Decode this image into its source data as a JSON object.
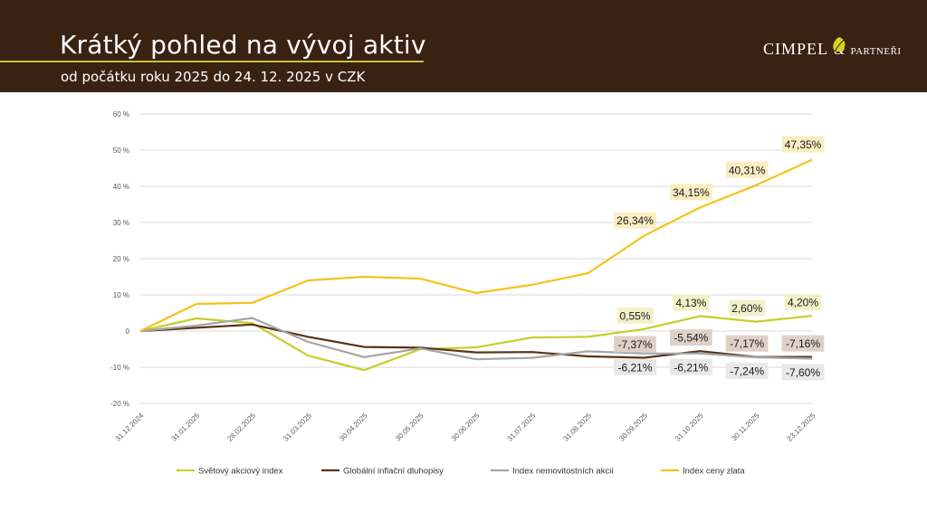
{
  "header": {
    "title": "Krátký pohled na vývoj aktiv",
    "subtitle": "od počátku roku 2025 do 24. 12. 2025 v CZK",
    "logo_main": "CIMPEL",
    "logo_amp": "&",
    "logo_partner": "PARTNEŘI"
  },
  "colors": {
    "header_bg": "#3a2212",
    "series": [
      "#c5cf2a",
      "#5a3214",
      "#a5a5a5",
      "#f7c11c"
    ],
    "label_bg": [
      "#f3f1c8",
      "#ded2c8",
      "#e8e8e8",
      "#fbedc2"
    ]
  },
  "chart_data": {
    "type": "line",
    "title": "",
    "xlabel": "",
    "ylabel": "",
    "ylim": [
      -20,
      60
    ],
    "yticks": [
      -20,
      -10,
      0,
      10,
      20,
      30,
      40,
      50,
      60
    ],
    "ytick_labels": [
      "-20 %",
      "-10 %",
      "0",
      "10 %",
      "20 %",
      "30 %",
      "40 %",
      "50 %",
      "60 %"
    ],
    "categories": [
      "31.12.2024",
      "31.01.2025",
      "28.02.2025",
      "31.03.2025",
      "30.04.2025",
      "30.05.2025",
      "30.06.2025",
      "31.07.2025",
      "31.08.2025",
      "30.09.2025",
      "31.10.2025",
      "30.11.2025",
      "23.12.2025"
    ],
    "legend_position": "bottom",
    "grid": true,
    "series": [
      {
        "name": "Světový akciový index",
        "values": [
          0,
          3.5,
          2.2,
          -6.8,
          -10.8,
          -5.0,
          -4.5,
          -1.8,
          -1.6,
          0.55,
          4.13,
          2.6,
          4.2
        ],
        "labels": [
          null,
          null,
          null,
          null,
          null,
          null,
          null,
          null,
          null,
          "0,55%",
          "4,13%",
          "2,60%",
          "4,20%"
        ]
      },
      {
        "name": "Globální inflační dluhopisy",
        "values": [
          0,
          0.9,
          1.8,
          -1.6,
          -4.4,
          -4.6,
          -5.9,
          -5.8,
          -7.0,
          -7.37,
          -5.54,
          -7.17,
          -7.16
        ],
        "labels": [
          null,
          null,
          null,
          null,
          null,
          null,
          null,
          null,
          null,
          "-7,37%",
          "-5,54%",
          "-7,17%",
          "-7,16%"
        ]
      },
      {
        "name": "Index nemovitostních akcií",
        "values": [
          0,
          1.5,
          3.6,
          -3.0,
          -7.2,
          -4.8,
          -7.8,
          -7.4,
          -5.6,
          -6.21,
          -6.21,
          -7.24,
          -7.6
        ],
        "labels": [
          null,
          null,
          null,
          null,
          null,
          null,
          null,
          null,
          null,
          "-6,21%",
          "-6,21%",
          "-7,24%",
          "-7,60%"
        ]
      },
      {
        "name": "Index ceny zlata",
        "values": [
          0,
          7.5,
          7.8,
          14.0,
          15.0,
          14.5,
          10.5,
          12.8,
          16.0,
          26.34,
          34.15,
          40.31,
          47.35
        ],
        "labels": [
          null,
          null,
          null,
          null,
          null,
          null,
          null,
          null,
          null,
          "26,34%",
          "34,15%",
          "40,31%",
          "47,35%"
        ]
      }
    ]
  }
}
